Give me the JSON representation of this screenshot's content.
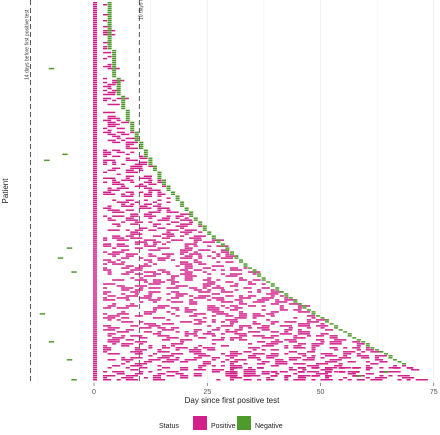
{
  "chart_data": {
    "type": "scatter",
    "xlabel": "Day since first positive test",
    "ylabel": "Patient",
    "xlim": [
      -14,
      75
    ],
    "xticks": [
      0,
      25,
      50,
      75
    ],
    "grid": true,
    "legend_position": "bottom",
    "series": [
      {
        "name": "Positive",
        "color": "#d21f8a"
      },
      {
        "name": "Negative",
        "color": "#4f9a2d"
      }
    ],
    "legend": {
      "title": "Status",
      "items": [
        "Positive",
        "Negative"
      ]
    },
    "reference_lines": [
      {
        "x": -14,
        "label": "14 days before first positive test"
      },
      {
        "x": 10,
        "label": "10 days after first positive test"
      }
    ],
    "patients": [
      {
        "id": 1,
        "last_positive_day": 75,
        "negative_day": null
      },
      {
        "id": 2,
        "last_positive_day": 64,
        "negative_day": 64
      },
      {
        "id": 3,
        "last_positive_day": 58,
        "negative_day": 58
      },
      {
        "id": 4,
        "last_positive_day": 52,
        "negative_day": 52
      },
      {
        "id": 5,
        "last_positive_day": 46,
        "negative_day": 46
      },
      {
        "id": 6,
        "last_positive_day": 42,
        "negative_day": 42
      },
      {
        "id": 7,
        "last_positive_day": 37,
        "negative_day": 37
      },
      {
        "id": 8,
        "last_positive_day": 33,
        "negative_day": 33
      },
      {
        "id": 9,
        "last_positive_day": 29,
        "negative_day": 29
      },
      {
        "id": 10,
        "last_positive_day": 25,
        "negative_day": 25
      },
      {
        "id": 11,
        "last_positive_day": 22,
        "negative_day": 22
      },
      {
        "id": 12,
        "last_positive_day": 18,
        "negative_day": 18
      },
      {
        "id": 13,
        "last_positive_day": 14,
        "negative_day": 14
      },
      {
        "id": 14,
        "last_positive_day": 11,
        "negative_day": 11
      },
      {
        "id": 15,
        "last_positive_day": 7,
        "negative_day": 7
      },
      {
        "id": 16,
        "last_positive_day": 4,
        "negative_day": 4
      },
      {
        "id": 17,
        "last_positive_day": 2,
        "negative_day": 2
      }
    ]
  }
}
